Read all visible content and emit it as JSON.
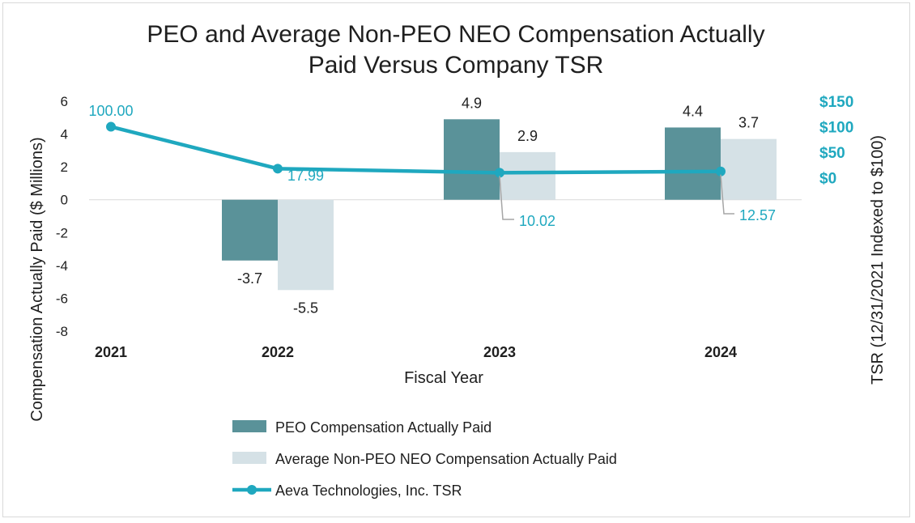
{
  "chart_data": {
    "type": "bar",
    "title_lines": [
      "PEO and Average Non-PEO NEO Compensation Actually",
      "Paid Versus Company TSR"
    ],
    "xlabel": "Fiscal Year",
    "ylabel": "Compensation Actually Paid ($ Millions)",
    "y2label": "TSR (12/31/2021 Indexed to $100)",
    "categories": [
      "2021",
      "2022",
      "2023",
      "2024"
    ],
    "ylim": [
      -8,
      6
    ],
    "yticks": [
      "6",
      "4",
      "2",
      "0",
      "-2",
      "-4",
      "-6",
      "-8"
    ],
    "y2lim": [
      -300,
      150
    ],
    "y2ticks": [
      "$150",
      "$100",
      "$50",
      "$0"
    ],
    "grid": false,
    "legend_position": "bottom",
    "series": [
      {
        "name": "PEO Compensation Actually Paid",
        "type": "bar",
        "values": [
          null,
          -3.7,
          4.9,
          4.4
        ],
        "labels": [
          "",
          "-3.7",
          "4.9",
          "4.4"
        ],
        "color": "#5a9299"
      },
      {
        "name": "Average Non-PEO NEO Compensation Actually Paid",
        "type": "bar",
        "values": [
          null,
          -5.5,
          2.9,
          3.7
        ],
        "labels": [
          "",
          "-5.5",
          "2.9",
          "3.7"
        ],
        "color": "#d5e1e6"
      },
      {
        "name": "Aeva Technologies, Inc. TSR",
        "type": "line",
        "axis": "right",
        "values": [
          100.0,
          17.99,
          10.02,
          12.57
        ],
        "labels": [
          "100.00",
          "17.99",
          "10.02",
          "12.57"
        ],
        "color": "#1fa8bf"
      }
    ]
  }
}
